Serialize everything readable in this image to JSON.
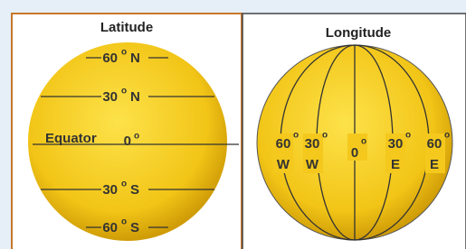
{
  "latitude": {
    "title": "Latitude",
    "lines": [
      {
        "number": "60",
        "degree": "o",
        "direction": "N"
      },
      {
        "number": "30",
        "degree": "o",
        "direction": "N"
      },
      {
        "number": "30",
        "degree": "o",
        "direction": "S"
      },
      {
        "number": "60",
        "degree": "o",
        "direction": "S"
      }
    ],
    "equator": {
      "label": "Equator",
      "number": "0",
      "degree": "o"
    }
  },
  "longitude": {
    "title": "Longitude",
    "meridians": [
      {
        "number": "60",
        "degree": "o",
        "direction": "W"
      },
      {
        "number": "30",
        "degree": "o",
        "direction": "W"
      },
      {
        "number": "0",
        "degree": "o"
      },
      {
        "number": "30",
        "degree": "o",
        "direction": "E"
      },
      {
        "number": "60",
        "degree": "o",
        "direction": "E"
      }
    ]
  }
}
